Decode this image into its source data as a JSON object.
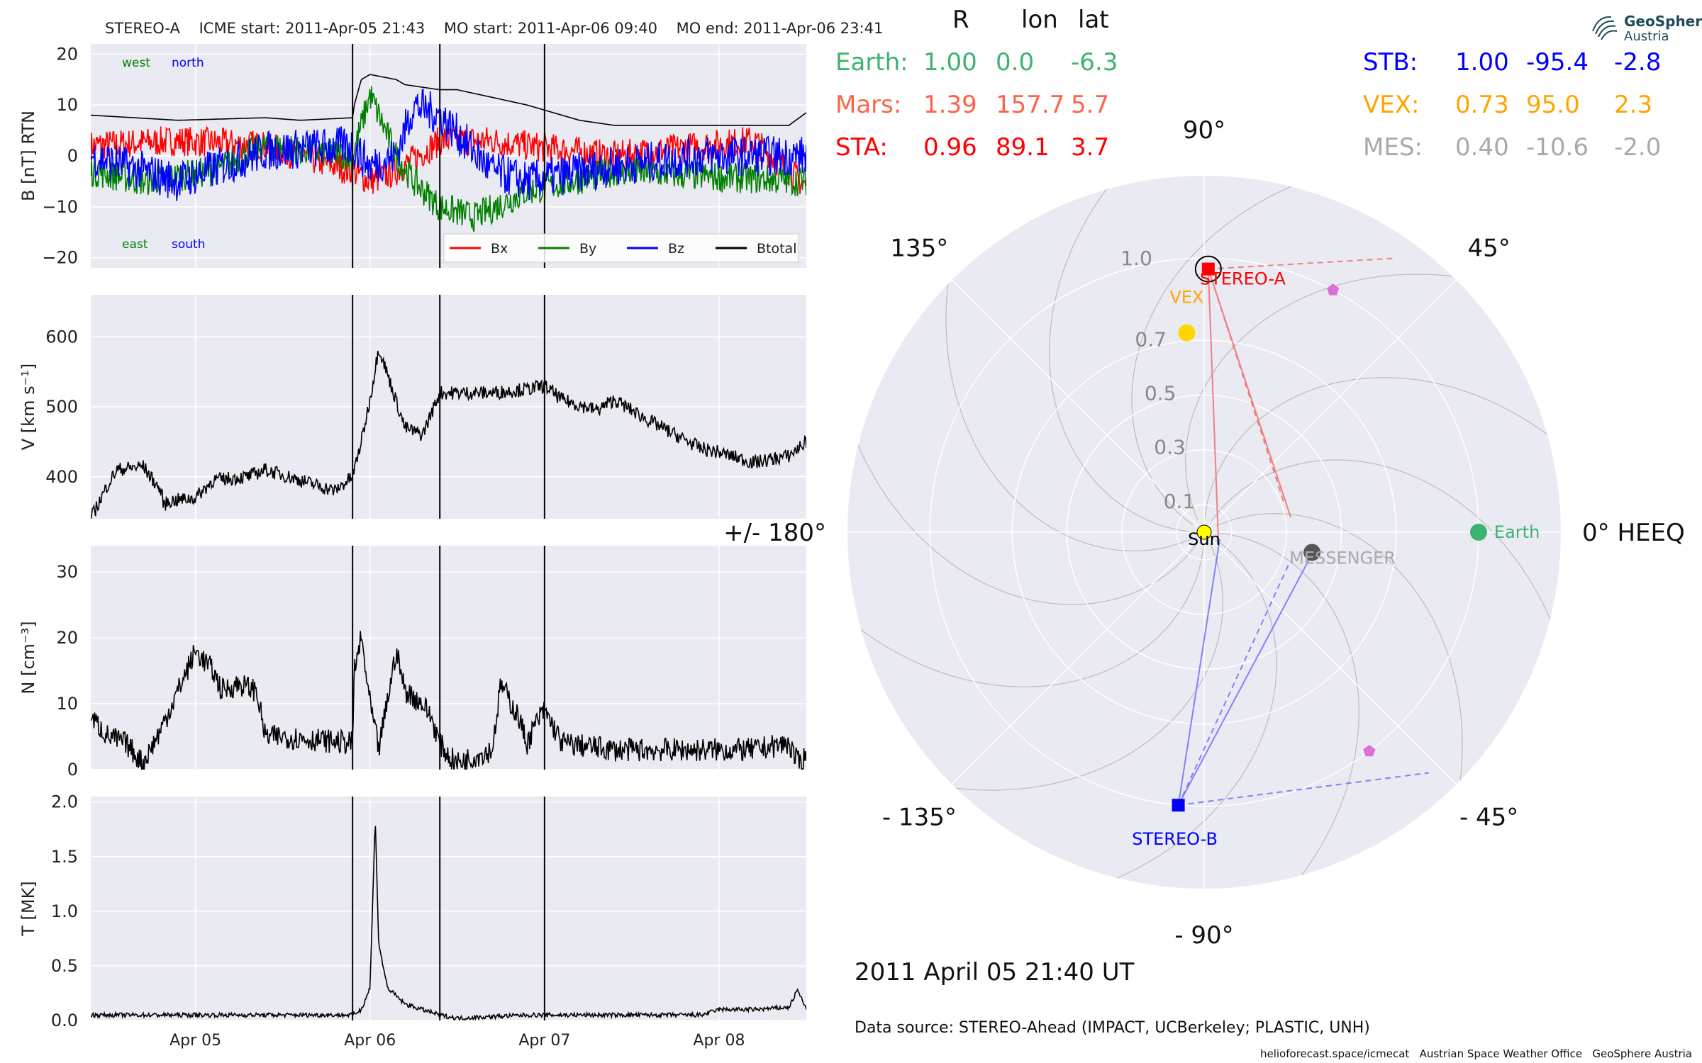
{
  "header": {
    "spacecraft": "STEREO-A",
    "icme_start": "ICME start: 2011-Apr-05 21:43",
    "mo_start": "MO start: 2011-Apr-06 09:40",
    "mo_end": "MO end: 2011-Apr-06 23:41"
  },
  "logo": {
    "line1": "GeoSphere",
    "line2": "Austria"
  },
  "date_stamp": "2011 April 05  21:40 UT",
  "data_source": "Data source: STEREO-Ahead (IMPACT, UCBerkeley; PLASTIC, UNH)",
  "footer": "helioforecast.space/icmecat   Austrian Space Weather Office   GeoSphere Austria",
  "colors": {
    "bx": "#ff0000",
    "by": "#008000",
    "bz": "#0000ff",
    "btotal": "#000000",
    "earth": "#3cb371",
    "mars": "#ff6347",
    "sta": "#ff0000",
    "stb": "#0000ff",
    "vex": "#ffa500",
    "mes": "#a9a9a9",
    "panel_bg": "#eaeaf2",
    "grid": "#ffffff"
  },
  "position_table": {
    "columns": [
      "R",
      "lon",
      "lat"
    ],
    "left_rows": [
      {
        "name": "Earth:",
        "r": "1.00",
        "lon": "0.0",
        "lat": "-6.3",
        "color": "#3cb371"
      },
      {
        "name": "Mars:",
        "r": "1.39",
        "lon": "157.7",
        "lat": "5.7",
        "color": "#ff6347"
      },
      {
        "name": "STA:",
        "r": "0.96",
        "lon": "89.1",
        "lat": "3.7",
        "color": "#ff0000"
      }
    ],
    "right_rows": [
      {
        "name": "STB:",
        "r": "1.00",
        "lon": "-95.4",
        "lat": "-2.8",
        "color": "#0000ff"
      },
      {
        "name": "VEX:",
        "r": "0.73",
        "lon": "95.0",
        "lat": "2.3",
        "color": "#ffa500"
      },
      {
        "name": "MES:",
        "r": "0.40",
        "lon": "-10.6",
        "lat": "-2.0",
        "color": "#a9a9a9"
      }
    ]
  },
  "chart_data": [
    {
      "type": "line",
      "panel": "magnetic-field",
      "ylabel": "B [nT] RTN",
      "ylim": [
        -22,
        22
      ],
      "yticks": [
        "20",
        "10",
        "0",
        "−10",
        "−20"
      ],
      "ytick_values": [
        20,
        10,
        0,
        -10,
        -20
      ],
      "annotations": {
        "west": "west",
        "north": "north",
        "east": "east",
        "south": "south"
      },
      "legend": [
        "Bx",
        "By",
        "Bz",
        "Btotal"
      ],
      "legend_position": "lower-right",
      "series": [
        {
          "name": "Btotal",
          "color": "#000000",
          "x": [
            0,
            0.5,
            1,
            1.2,
            1.5,
            1.51,
            1.55,
            1.6,
            1.75,
            1.8,
            2.0,
            2.1,
            2.5,
            2.8,
            3.0,
            3.2,
            3.5,
            3.8,
            4.0,
            4.1
          ],
          "y": [
            8,
            7,
            7.5,
            7,
            7.5,
            10,
            15,
            16,
            15,
            14,
            13,
            13,
            10,
            7,
            6,
            6,
            6,
            6,
            6,
            8.5
          ]
        },
        {
          "name": "Bx",
          "color": "#ff0000",
          "x": [
            0,
            0.5,
            1,
            1.5,
            1.6,
            1.75,
            2.0,
            2.3,
            2.5,
            3.0,
            3.5,
            3.8,
            4.1
          ],
          "y": [
            2,
            3,
            2,
            -3,
            -5,
            -3,
            3,
            3,
            2,
            0,
            2,
            3,
            -6
          ],
          "noise": 3
        },
        {
          "name": "By",
          "color": "#008000",
          "x": [
            0,
            0.3,
            0.7,
            1.0,
            1.5,
            1.6,
            1.75,
            1.85,
            2.0,
            2.2,
            2.5,
            3.0,
            3.5,
            4.1
          ],
          "y": [
            -3,
            -5,
            -3,
            2,
            0,
            12,
            0,
            -5,
            -10,
            -12,
            -7,
            -3,
            -4,
            -5
          ],
          "noise": 3
        },
        {
          "name": "Bz",
          "color": "#0000ff",
          "x": [
            0,
            0.5,
            1.0,
            1.5,
            1.6,
            1.75,
            1.85,
            2.0,
            2.3,
            2.5,
            3.0,
            3.5,
            4.1
          ],
          "y": [
            0,
            -5,
            1,
            2,
            -2,
            0,
            10,
            8,
            -3,
            -5,
            -2,
            0,
            0
          ],
          "noise": 4
        }
      ]
    },
    {
      "type": "line",
      "panel": "speed",
      "ylabel": "V [km s⁻¹]",
      "ylim": [
        340,
        660
      ],
      "yticks": [
        "600",
        "500",
        "400"
      ],
      "ytick_values": [
        600,
        500,
        400
      ],
      "series": [
        {
          "name": "",
          "color": "#000000",
          "x": [
            0,
            0.1,
            0.15,
            0.3,
            0.4,
            0.42,
            0.45,
            0.6,
            0.7,
            0.9,
            1.0,
            1.2,
            1.4,
            1.5,
            1.55,
            1.6,
            1.65,
            1.8,
            1.9,
            2.0,
            2.1,
            2.3,
            2.5,
            2.6,
            2.7,
            2.9,
            3.0,
            3.2,
            3.5,
            3.6,
            3.8,
            4.0,
            4.1
          ],
          "y": [
            340,
            390,
            410,
            415,
            380,
            360,
            365,
            370,
            395,
            400,
            410,
            395,
            380,
            400,
            450,
            510,
            585,
            470,
            460,
            520,
            520,
            520,
            525,
            530,
            510,
            495,
            510,
            480,
            440,
            435,
            420,
            430,
            450
          ],
          "noise": 10
        }
      ]
    },
    {
      "type": "line",
      "panel": "density",
      "ylabel": "N [cm⁻³]",
      "ylim": [
        0,
        34
      ],
      "yticks": [
        "30",
        "20",
        "10",
        "0"
      ],
      "ytick_values": [
        30,
        20,
        10,
        0
      ],
      "series": [
        {
          "name": "",
          "color": "#000000",
          "x": [
            0,
            0.1,
            0.2,
            0.3,
            0.4,
            0.6,
            0.7,
            0.75,
            0.85,
            0.95,
            1.0,
            1.1,
            1.3,
            1.5,
            1.51,
            1.55,
            1.6,
            1.65,
            1.75,
            1.8,
            1.9,
            1.95,
            2.0,
            2.05,
            2.1,
            2.3,
            2.35,
            2.45,
            2.5,
            2.55,
            2.6,
            2.7,
            3.0,
            3.5,
            3.8,
            4.0,
            4.05,
            4.1
          ],
          "y": [
            8,
            5,
            4,
            1,
            6,
            18,
            15,
            12,
            13,
            12,
            5,
            5,
            4.5,
            4,
            15,
            20,
            10,
            3,
            18,
            12,
            10,
            8,
            4,
            2,
            1,
            3,
            13,
            8,
            4,
            7,
            9,
            4,
            3,
            3,
            3,
            4,
            1,
            2
          ],
          "noise": 1.8
        }
      ]
    },
    {
      "type": "line",
      "panel": "temperature",
      "ylabel": "T [MK]",
      "ylim": [
        0,
        2.05
      ],
      "yticks": [
        "2.0",
        "1.5",
        "1.0",
        "0.5",
        "0.0"
      ],
      "ytick_values": [
        2.0,
        1.5,
        1.0,
        0.5,
        0.0
      ],
      "xticks": [
        "Apr 05",
        "Apr 06",
        "Apr 07",
        "Apr 08"
      ],
      "xtick_values": [
        0.6,
        1.6,
        2.6,
        3.6
      ],
      "series": [
        {
          "name": "",
          "color": "#000000",
          "x": [
            0,
            0.5,
            1.0,
            1.5,
            1.55,
            1.6,
            1.63,
            1.65,
            1.7,
            1.8,
            1.9,
            2.0,
            2.1,
            2.5,
            3.0,
            3.5,
            3.6,
            3.8,
            4.0,
            4.05,
            4.1
          ],
          "y": [
            0.05,
            0.05,
            0.05,
            0.05,
            0.1,
            0.3,
            1.85,
            0.7,
            0.3,
            0.15,
            0.1,
            0.05,
            0.02,
            0.05,
            0.05,
            0.05,
            0.1,
            0.1,
            0.12,
            0.28,
            0.1
          ],
          "noise": 0.02
        }
      ]
    },
    {
      "type": "scatter",
      "panel": "polar-positions",
      "coordinates": "polar, radius in AU, longitude in degrees HEEQ",
      "angle_labels": [
        "90°",
        "45°",
        "0° HEEQ",
        "- 45°",
        "- 90°",
        "- 135°",
        "+/- 180°",
        "135°"
      ],
      "angle_label_values": [
        90,
        45,
        0,
        -45,
        -90,
        -135,
        180,
        135
      ],
      "radial_labels": [
        "1.0",
        "0.7",
        "0.5",
        "0.3",
        "0.1"
      ],
      "radial_label_values": [
        1.0,
        0.7,
        0.5,
        0.3,
        0.1
      ],
      "rlim": [
        0,
        1.3
      ],
      "points": [
        {
          "name": "Sun",
          "r": 0.0,
          "lon": 0.0,
          "color": "#ffff00",
          "marker": "circle"
        },
        {
          "name": "Earth",
          "r": 1.0,
          "lon": 0.0,
          "color": "#3cb371",
          "marker": "circle"
        },
        {
          "name": "STEREO-A",
          "r": 0.96,
          "lon": 89.1,
          "color": "#ff0000",
          "marker": "square"
        },
        {
          "name": "STEREO-B",
          "r": 1.0,
          "lon": -95.4,
          "color": "#0000ff",
          "marker": "square"
        },
        {
          "name": "VEX",
          "r": 0.73,
          "lon": 95.0,
          "color": "#ffd700",
          "marker": "circle"
        },
        {
          "name": "MESSENGER",
          "r": 0.4,
          "lon": -10.6,
          "color": "#555555",
          "marker": "circle"
        },
        {
          "name": "",
          "r": 1.0,
          "lon": 62.0,
          "color": "#da70d6",
          "marker": "pentagon"
        },
        {
          "name": "",
          "r": 1.0,
          "lon": -53.0,
          "color": "#da70d6",
          "marker": "pentagon"
        }
      ]
    }
  ]
}
